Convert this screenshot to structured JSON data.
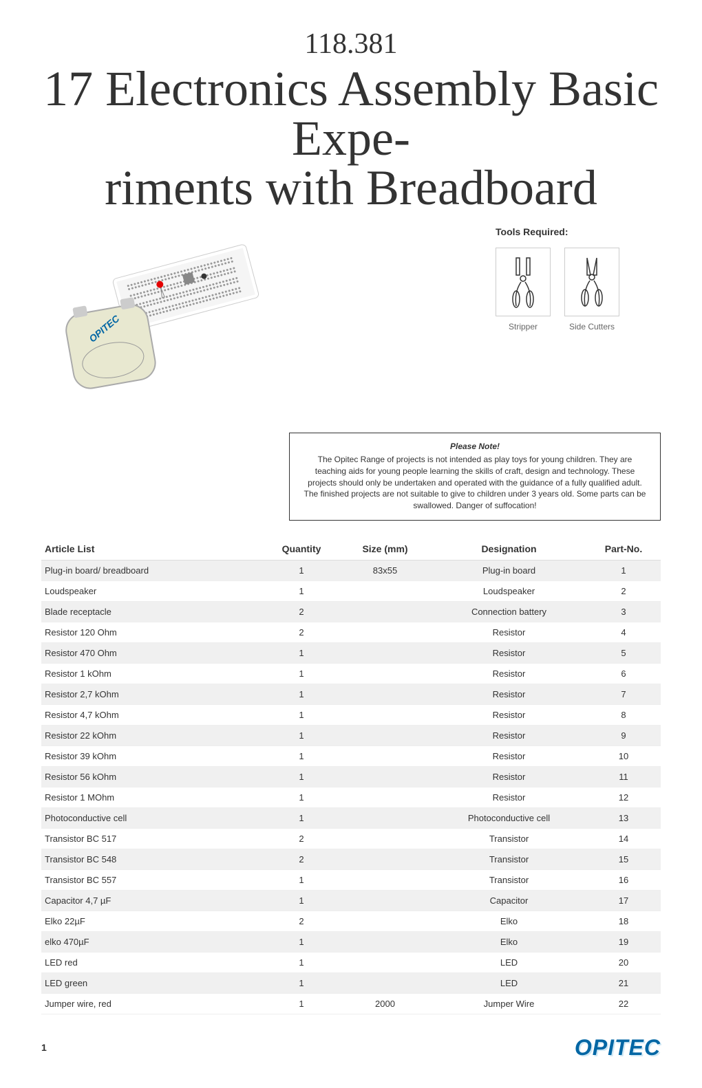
{
  "header": {
    "article_number": "118.381",
    "title_line1": "17 Electronics Assembly Basic Expe-",
    "title_line2": "riments with Breadboard"
  },
  "tools": {
    "title": "Tools Required:",
    "items": [
      {
        "name": "stripper",
        "label": "Stripper"
      },
      {
        "name": "side-cutters",
        "label": "Side Cutters"
      }
    ]
  },
  "note": {
    "title": "Please Note!",
    "text": "The Opitec Range of projects is not intended as play toys for young children. They are teaching aids for young people learning the skills of craft, design and technology. These projects should only be undertaken and operated with the guidance of a fully qualified adult. The finished projects are not suitable to give to children under 3 years old. Some parts can be swallowed. Danger of suffocation!"
  },
  "table": {
    "headers": {
      "article": "Article List",
      "quantity": "Quantity",
      "size": "Size (mm)",
      "designation": "Designation",
      "partno": "Part-No."
    },
    "rows": [
      {
        "article": "Plug-in board/ breadboard",
        "quantity": "1",
        "size": "83x55",
        "designation": "Plug-in board",
        "partno": "1"
      },
      {
        "article": "Loudspeaker",
        "quantity": "1",
        "size": "",
        "designation": "Loudspeaker",
        "partno": "2"
      },
      {
        "article": "Blade receptacle",
        "quantity": "2",
        "size": "",
        "designation": "Connection battery",
        "partno": "3"
      },
      {
        "article": "Resistor 120 Ohm",
        "quantity": "2",
        "size": "",
        "designation": "Resistor",
        "partno": "4"
      },
      {
        "article": "Resistor 470 Ohm",
        "quantity": "1",
        "size": "",
        "designation": "Resistor",
        "partno": "5"
      },
      {
        "article": "Resistor 1 kOhm",
        "quantity": "1",
        "size": "",
        "designation": "Resistor",
        "partno": "6"
      },
      {
        "article": "Resistor 2,7 kOhm",
        "quantity": "1",
        "size": "",
        "designation": "Resistor",
        "partno": "7"
      },
      {
        "article": "Resistor 4,7 kOhm",
        "quantity": "1",
        "size": "",
        "designation": "Resistor",
        "partno": "8"
      },
      {
        "article": "Resistor 22 kOhm",
        "quantity": "1",
        "size": "",
        "designation": "Resistor",
        "partno": "9"
      },
      {
        "article": "Resistor 39 kOhm",
        "quantity": "1",
        "size": "",
        "designation": "Resistor",
        "partno": "10"
      },
      {
        "article": "Resistor 56 kOhm",
        "quantity": "1",
        "size": "",
        "designation": "Resistor",
        "partno": "11"
      },
      {
        "article": "Resistor 1 MOhm",
        "quantity": "1",
        "size": "",
        "designation": "Resistor",
        "partno": "12"
      },
      {
        "article": "Photoconductive cell",
        "quantity": "1",
        "size": "",
        "designation": "Photoconductive cell",
        "partno": "13"
      },
      {
        "article": "Transistor BC 517",
        "quantity": "2",
        "size": "",
        "designation": "Transistor",
        "partno": "14"
      },
      {
        "article": "Transistor BC 548",
        "quantity": "2",
        "size": "",
        "designation": "Transistor",
        "partno": "15"
      },
      {
        "article": "Transistor BC 557",
        "quantity": "1",
        "size": "",
        "designation": "Transistor",
        "partno": "16"
      },
      {
        "article": "Capacitor 4,7 µF",
        "quantity": "1",
        "size": "",
        "designation": "Capacitor",
        "partno": "17"
      },
      {
        "article": "Elko 22µF",
        "quantity": "2",
        "size": "",
        "designation": "Elko",
        "partno": "18"
      },
      {
        "article": "elko 470µF",
        "quantity": "1",
        "size": "",
        "designation": "Elko",
        "partno": "19"
      },
      {
        "article": "LED red",
        "quantity": "1",
        "size": "",
        "designation": "LED",
        "partno": "20"
      },
      {
        "article": "LED green",
        "quantity": "1",
        "size": "",
        "designation": "LED",
        "partno": "21"
      },
      {
        "article": "Jumper wire, red",
        "quantity": "1",
        "size": "2000",
        "designation": "Jumper Wire",
        "partno": "22"
      }
    ],
    "stripe_color": "#f0f0f0"
  },
  "footer": {
    "page_number": "1",
    "logo_text": "OPITEC",
    "logo_color": "#0066a4"
  }
}
